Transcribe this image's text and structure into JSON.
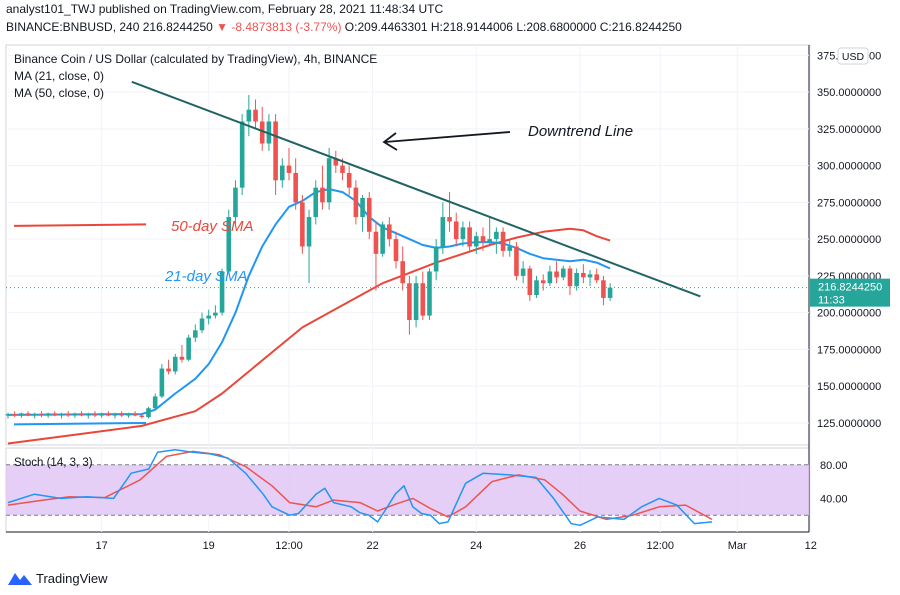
{
  "header": {
    "line1": "analyst101_TWJ published on TradingView.com, February 28, 2021 11:48:34 UTC",
    "symbol": "BINANCE:BNBUSD, 240",
    "last": "216.8244250",
    "change": "-8.4873813 (-3.77%)",
    "open": "O:209.4463301",
    "high": "H:218.9144006",
    "low": "L:208.6800000",
    "close": "C:216.8244250"
  },
  "legend": {
    "title": "Binance Coin / US Dollar (calculated by TradingView), 4h, BINANCE",
    "ma21": "MA (21, close, 0)",
    "ma50": "MA (50, close, 0)"
  },
  "annotations": {
    "downtrend": "Downtrend Line",
    "sma50": "50-day SMA",
    "sma21": "21-day SMA"
  },
  "price_tag": {
    "value": "216.8244250",
    "time": "11:33"
  },
  "currency": "USD",
  "stoch": {
    "label": "Stoch (14, 3, 3)"
  },
  "footer": {
    "brand": "TradingView"
  },
  "colors": {
    "up": "#26a69a",
    "down": "#ef5350",
    "ma21": "#2196f3",
    "ma50": "#e9473a",
    "trendline": "#216464",
    "stoch_k": "#2196f3",
    "stoch_d": "#ef5350",
    "stoch_band": "#e1c7f5"
  },
  "chart_data": {
    "type": "candlestick",
    "x_ticks": [
      "17",
      "19",
      "12:00",
      "22",
      "24",
      "26",
      "12:00",
      "Mar",
      "12"
    ],
    "y_ticks": [
      "125.0000000",
      "150.0000000",
      "175.0000000",
      "200.0000000",
      "225.0000000",
      "250.0000000",
      "275.0000000",
      "300.0000000",
      "325.0000000",
      "350.0000000",
      "375.0000000"
    ],
    "y_tick_values": [
      125,
      150,
      175,
      200,
      225,
      250,
      275,
      300,
      325,
      350,
      375
    ],
    "ylim": [
      110,
      382
    ],
    "candles": [
      [
        130.0,
        132.0,
        128.0,
        131.0
      ],
      [
        131.0,
        133.0,
        129.0,
        130.0
      ],
      [
        130.0,
        132.0,
        128.5,
        131.5
      ],
      [
        131.5,
        133.0,
        129.5,
        130.0
      ],
      [
        130.0,
        132.0,
        128.0,
        131.0
      ],
      [
        131.0,
        133.0,
        129.0,
        130.0
      ],
      [
        130.0,
        132.0,
        128.5,
        131.5
      ],
      [
        131.5,
        133.0,
        129.5,
        130.0
      ],
      [
        130.0,
        132.0,
        128.0,
        131.0
      ],
      [
        131.0,
        133.0,
        129.0,
        130.0
      ],
      [
        130.0,
        132.0,
        128.5,
        131.5
      ],
      [
        131.5,
        133.0,
        129.5,
        130.0
      ],
      [
        130.0,
        132.0,
        128.0,
        131.0
      ],
      [
        131.0,
        133.0,
        129.0,
        130.0
      ],
      [
        130.0,
        132.0,
        128.5,
        131.5
      ],
      [
        131.5,
        133.0,
        129.5,
        130.0
      ],
      [
        130.0,
        132.0,
        128.0,
        131.0
      ],
      [
        131.0,
        133.0,
        129.0,
        130.0
      ],
      [
        130.0,
        132.0,
        128.5,
        131.5
      ],
      [
        131.5,
        133.0,
        129.5,
        130.0
      ],
      [
        130.0,
        131.0,
        128.0,
        129.0
      ],
      [
        129.0,
        136.0,
        128.0,
        135.0
      ],
      [
        135.0,
        145.0,
        134.0,
        143.0
      ],
      [
        143.0,
        165.0,
        142.0,
        162.0
      ],
      [
        162.0,
        168.0,
        158.0,
        160.0
      ],
      [
        160.0,
        172.0,
        158.0,
        170.0
      ],
      [
        170.0,
        178.0,
        166.0,
        168.0
      ],
      [
        168.0,
        185.0,
        167.0,
        183.0
      ],
      [
        183.0,
        192.0,
        180.0,
        188.0
      ],
      [
        188.0,
        200.0,
        186.0,
        196.0
      ],
      [
        196.0,
        202.0,
        192.0,
        198.0
      ],
      [
        198.0,
        205.0,
        196.0,
        200.0
      ],
      [
        200.0,
        230.0,
        198.0,
        228.0
      ],
      [
        228.0,
        270.0,
        226.0,
        265.0
      ],
      [
        265.0,
        290.0,
        260.0,
        285.0
      ],
      [
        285.0,
        335.0,
        280.0,
        330.0
      ],
      [
        330.0,
        348.0,
        320.0,
        338.0
      ],
      [
        338.0,
        345.0,
        325.0,
        330.0
      ],
      [
        330.0,
        340.0,
        310.0,
        315.0
      ],
      [
        315.0,
        335.0,
        310.0,
        330.0
      ],
      [
        330.0,
        335.0,
        280.0,
        290.0
      ],
      [
        290.0,
        305.0,
        285.0,
        300.0
      ],
      [
        300.0,
        312.0,
        290.0,
        295.0
      ],
      [
        295.0,
        305.0,
        270.0,
        275.0
      ],
      [
        275.0,
        280.0,
        240.0,
        245.0
      ],
      [
        245.0,
        270.0,
        220.0,
        265.0
      ],
      [
        265.0,
        290.0,
        260.0,
        285.0
      ],
      [
        285.0,
        300.0,
        270.0,
        275.0
      ],
      [
        275.0,
        312.0,
        270.0,
        305.0
      ],
      [
        305.0,
        310.0,
        295.0,
        300.0
      ],
      [
        300.0,
        305.0,
        290.0,
        295.0
      ],
      [
        295.0,
        300.0,
        280.0,
        285.0
      ],
      [
        285.0,
        290.0,
        260.0,
        265.0
      ],
      [
        265.0,
        280.0,
        255.0,
        278.0
      ],
      [
        278.0,
        282.0,
        250.0,
        255.0
      ],
      [
        255.0,
        262.0,
        215.0,
        240.0
      ],
      [
        240.0,
        262.0,
        238.0,
        260.0
      ],
      [
        260.0,
        265.0,
        245.0,
        250.0
      ],
      [
        250.0,
        255.0,
        230.0,
        235.0
      ],
      [
        235.0,
        245.0,
        215.0,
        220.0
      ],
      [
        220.0,
        225.0,
        185.0,
        195.0
      ],
      [
        195.0,
        225.0,
        190.0,
        220.0
      ],
      [
        220.0,
        228.0,
        195.0,
        198.0
      ],
      [
        198.0,
        230.0,
        195.0,
        228.0
      ],
      [
        228.0,
        250.0,
        222.0,
        245.0
      ],
      [
        245.0,
        275.0,
        240.0,
        265.0
      ],
      [
        265.0,
        282.0,
        255.0,
        262.0
      ],
      [
        262.0,
        268.0,
        245.0,
        250.0
      ],
      [
        250.0,
        262.0,
        245.0,
        258.0
      ],
      [
        258.0,
        262.0,
        242.0,
        245.0
      ],
      [
        245.0,
        255.0,
        240.0,
        252.0
      ],
      [
        252.0,
        258.0,
        242.0,
        248.0
      ],
      [
        248.0,
        265.0,
        245.0,
        250.0
      ],
      [
        250.0,
        258.0,
        240.0,
        255.0
      ],
      [
        255.0,
        258.0,
        238.0,
        242.0
      ],
      [
        242.0,
        250.0,
        238.0,
        245.0
      ],
      [
        245.0,
        248.0,
        222.0,
        225.0
      ],
      [
        225.0,
        235.0,
        220.0,
        230.0
      ],
      [
        230.0,
        232.0,
        208.0,
        212.0
      ],
      [
        212.0,
        225.0,
        210.0,
        222.0
      ],
      [
        222.0,
        226.0,
        215.0,
        220.0
      ],
      [
        220.0,
        232.0,
        218.0,
        228.0
      ],
      [
        228.0,
        235.0,
        220.0,
        224.0
      ],
      [
        224.0,
        232.0,
        222.0,
        230.0
      ],
      [
        230.0,
        232.0,
        212.0,
        218.0
      ],
      [
        218.0,
        230.0,
        215.0,
        227.0
      ],
      [
        227.0,
        233.0,
        220.0,
        224.0
      ],
      [
        224.0,
        229.0,
        218.0,
        226.0
      ],
      [
        226.0,
        230.0,
        220.0,
        222.0
      ],
      [
        222.0,
        225.0,
        205.0,
        210.0
      ],
      [
        210.0,
        220.0,
        208.0,
        217.0
      ]
    ],
    "ma21": [
      [
        0,
        130.5
      ],
      [
        20,
        131
      ],
      [
        22,
        134
      ],
      [
        25,
        145
      ],
      [
        28,
        155
      ],
      [
        30,
        165
      ],
      [
        32,
        180
      ],
      [
        34,
        200
      ],
      [
        36,
        225
      ],
      [
        38,
        245
      ],
      [
        40,
        260
      ],
      [
        42,
        272
      ],
      [
        44,
        276
      ],
      [
        46,
        282
      ],
      [
        48,
        284
      ],
      [
        50,
        282
      ],
      [
        52,
        276
      ],
      [
        54,
        265
      ],
      [
        56,
        258
      ],
      [
        58,
        254
      ],
      [
        60,
        250
      ],
      [
        62,
        246
      ],
      [
        64,
        244
      ],
      [
        66,
        245
      ],
      [
        68,
        247
      ],
      [
        70,
        248
      ],
      [
        72,
        248
      ],
      [
        74,
        247
      ],
      [
        76,
        244
      ],
      [
        78,
        240
      ],
      [
        80,
        237
      ],
      [
        82,
        236
      ],
      [
        84,
        235
      ],
      [
        86,
        236
      ],
      [
        88,
        234
      ],
      [
        90,
        230
      ]
    ],
    "ma50": [
      [
        0,
        111
      ],
      [
        10,
        117
      ],
      [
        20,
        123
      ],
      [
        28,
        133
      ],
      [
        32,
        145
      ],
      [
        36,
        160
      ],
      [
        40,
        175
      ],
      [
        44,
        190
      ],
      [
        48,
        200
      ],
      [
        52,
        210
      ],
      [
        56,
        220
      ],
      [
        60,
        227
      ],
      [
        64,
        234
      ],
      [
        68,
        240
      ],
      [
        72,
        246
      ],
      [
        76,
        251
      ],
      [
        80,
        255
      ],
      [
        82,
        256
      ],
      [
        84,
        257
      ],
      [
        86,
        256
      ],
      [
        88,
        252
      ],
      [
        90,
        249
      ]
    ],
    "ma21_sample": [
      [
        0,
        124
      ],
      [
        20,
        125
      ]
    ],
    "ma50_sample": [
      [
        0,
        259
      ],
      [
        20,
        260
      ]
    ],
    "trendline": [
      [
        18.5,
        357
      ],
      [
        103.5,
        211
      ]
    ],
    "stoch": {
      "levels": [
        20,
        80
      ],
      "ylim": [
        0,
        100
      ],
      "y_ticks": [
        "40.00",
        "80.00"
      ],
      "y_tick_values": [
        40,
        80
      ],
      "k": [
        [
          0,
          35
        ],
        [
          6,
          45
        ],
        [
          12,
          40
        ],
        [
          18,
          42
        ],
        [
          24,
          40
        ],
        [
          28,
          70
        ],
        [
          32,
          75
        ],
        [
          34,
          95
        ],
        [
          38,
          98
        ],
        [
          42,
          95
        ],
        [
          46,
          93
        ],
        [
          50,
          88
        ],
        [
          54,
          70
        ],
        [
          58,
          45
        ],
        [
          60,
          30
        ],
        [
          64,
          20
        ],
        [
          66,
          22
        ],
        [
          70,
          45
        ],
        [
          72,
          52
        ],
        [
          74,
          35
        ],
        [
          78,
          30
        ],
        [
          80,
          23
        ],
        [
          82,
          20
        ],
        [
          84,
          12
        ],
        [
          86,
          28
        ],
        [
          88,
          45
        ],
        [
          90,
          55
        ],
        [
          92,
          30
        ],
        [
          94,
          22
        ],
        [
          96,
          20
        ],
        [
          98,
          10
        ],
        [
          100,
          12
        ],
        [
          104,
          58
        ],
        [
          108,
          70
        ],
        [
          114,
          68
        ],
        [
          120,
          65
        ],
        [
          124,
          40
        ],
        [
          128,
          10
        ],
        [
          130,
          8
        ],
        [
          134,
          18
        ],
        [
          140,
          15
        ],
        [
          144,
          30
        ],
        [
          148,
          40
        ],
        [
          152,
          32
        ],
        [
          156,
          10
        ],
        [
          160,
          12
        ]
      ],
      "d": [
        [
          0,
          32
        ],
        [
          8,
          38
        ],
        [
          14,
          42
        ],
        [
          22,
          41
        ],
        [
          30,
          62
        ],
        [
          36,
          90
        ],
        [
          42,
          96
        ],
        [
          48,
          92
        ],
        [
          54,
          78
        ],
        [
          60,
          55
        ],
        [
          64,
          35
        ],
        [
          70,
          30
        ],
        [
          74,
          38
        ],
        [
          80,
          35
        ],
        [
          84,
          25
        ],
        [
          88,
          33
        ],
        [
          92,
          40
        ],
        [
          96,
          28
        ],
        [
          100,
          18
        ],
        [
          104,
          30
        ],
        [
          110,
          60
        ],
        [
          116,
          68
        ],
        [
          122,
          62
        ],
        [
          126,
          45
        ],
        [
          130,
          25
        ],
        [
          136,
          15
        ],
        [
          142,
          20
        ],
        [
          148,
          30
        ],
        [
          154,
          32
        ],
        [
          160,
          15
        ]
      ]
    }
  }
}
